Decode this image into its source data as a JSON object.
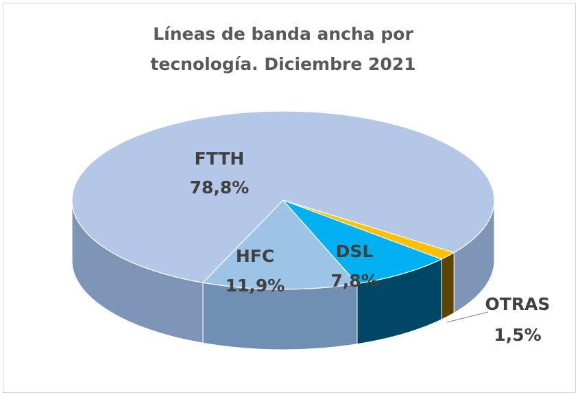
{
  "chart_data": {
    "type": "pie",
    "title": "Líneas de banda ancha por tecnología. Diciembre 2021",
    "categories": [
      "FTTH",
      "HFC",
      "DSL",
      "OTRAS"
    ],
    "values": [
      78.8,
      11.9,
      7.8,
      1.5
    ],
    "value_labels": [
      "78,8%",
      "11,9%",
      "7,8%",
      "1,5%"
    ],
    "colors": [
      "#b4c7e7",
      "#9dc3e6",
      "#00b0f0",
      "#ffc000"
    ]
  }
}
